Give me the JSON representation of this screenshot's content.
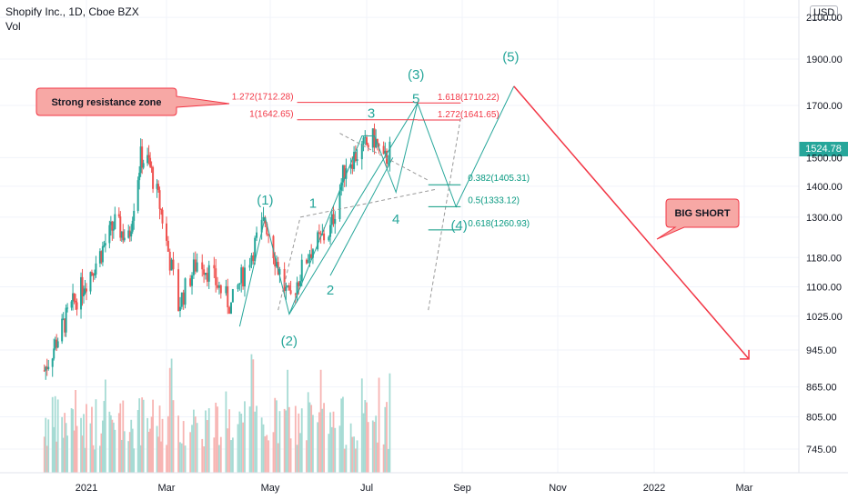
{
  "header": {
    "symbol": "Shopify Inc., 1D, Cboe BZX",
    "vol_label": "Vol"
  },
  "currency": "USD",
  "last_price": "1524.78",
  "colors": {
    "up": "#26a69a",
    "down": "#ef5350",
    "vol_up": "#a6dbd4",
    "vol_down": "#f7b4b2",
    "wave_green": "#26a69a",
    "fib_red": "#f23645",
    "fib_green": "#089981",
    "arrow": "#f23645"
  },
  "chart_data": {
    "type": "candlestick",
    "title": "Shopify Inc., 1D, Cboe BZX",
    "y_axis": {
      "scale": "log",
      "ticks": [
        745,
        805,
        865,
        945,
        1025,
        1100,
        1180,
        1300,
        1400,
        1500,
        1700,
        1900,
        2100
      ],
      "tick_labels": [
        "745.00",
        "805.00",
        "865.00",
        "945.00",
        "1025.00",
        "1100.00",
        "1180.00",
        "1300.00",
        "1400.00",
        "1500.00",
        "1700.00",
        "1900.00",
        "2100.00"
      ]
    },
    "x_axis": {
      "tick_labels": [
        "2021",
        "Mar",
        "May",
        "Jul",
        "Sep",
        "Nov",
        "2022",
        "Mar"
      ],
      "tick_dates": [
        "2021-01-01",
        "2021-03-01",
        "2021-05-01",
        "2021-07-01",
        "2021-09-01",
        "2021-11-01",
        "2022-01-01",
        "2022-03-01"
      ]
    },
    "price_path": [
      [
        "2020-12-01",
        900
      ],
      [
        "2020-12-20",
        1040
      ],
      [
        "2021-01-10",
        1180
      ],
      [
        "2021-01-22",
        1280
      ],
      [
        "2021-02-01",
        1230
      ],
      [
        "2021-02-10",
        1500
      ],
      [
        "2021-02-16",
        1480
      ],
      [
        "2021-02-25",
        1320
      ],
      [
        "2021-03-08",
        1050
      ],
      [
        "2021-03-20",
        1180
      ],
      [
        "2021-04-08",
        1050
      ],
      [
        "2021-04-28",
        1290
      ],
      [
        "2021-05-06",
        1150
      ],
      [
        "2021-05-13",
        1060
      ],
      [
        "2021-05-26",
        1200
      ],
      [
        "2021-06-08",
        1260
      ],
      [
        "2021-06-18",
        1480
      ],
      [
        "2021-06-28",
        1530
      ],
      [
        "2021-07-06",
        1570
      ],
      [
        "2021-07-12",
        1480
      ],
      [
        "2021-07-16",
        1524.78
      ]
    ],
    "wave_labels": [
      {
        "text": "(1)",
        "date": "2021-04-28",
        "price": 1340
      },
      {
        "text": "(2)",
        "date": "2021-05-13",
        "price": 955
      },
      {
        "text": "(3)",
        "date": "2021-08-02",
        "price": 1810
      },
      {
        "text": "(4)",
        "date": "2021-08-30",
        "price": 1260
      },
      {
        "text": "(5)",
        "date": "2021-10-02",
        "price": 1890
      },
      {
        "text": "1",
        "date": "2021-05-28",
        "price": 1330
      },
      {
        "text": "2",
        "date": "2021-06-08",
        "price": 1080
      },
      {
        "text": "3",
        "date": "2021-07-04",
        "price": 1650
      },
      {
        "text": "4",
        "date": "2021-07-20",
        "price": 1280
      },
      {
        "text": "5",
        "date": "2021-08-02",
        "price": 1710
      }
    ],
    "fib_upper": [
      {
        "label": "1.272(1712.28)",
        "price": 1712.28
      },
      {
        "label": "1(1642.65)",
        "price": 1642.65
      },
      {
        "label": "1.618(1710.22)",
        "price": 1710.22
      },
      {
        "label": "1.272(1641.65)",
        "price": 1641.65
      }
    ],
    "fib_lower": [
      {
        "label": "0.382(1405.31)",
        "price": 1405.31
      },
      {
        "label": "0.5(1333.12)",
        "price": 1333.12
      },
      {
        "label": "0.618(1260.93)",
        "price": 1260.93
      }
    ],
    "projection_path": [
      [
        "2021-04-13",
        1000
      ],
      [
        "2021-04-28",
        1300
      ],
      [
        "2021-05-13",
        1030
      ],
      [
        "2021-08-03",
        1710
      ],
      [
        "2021-08-28",
        1333
      ],
      [
        "2021-10-04",
        1780
      ],
      [
        "2022-03-04",
        925
      ]
    ],
    "callouts": [
      {
        "text": "Strong resistance zone"
      },
      {
        "text": "BIG SHORT"
      }
    ]
  }
}
